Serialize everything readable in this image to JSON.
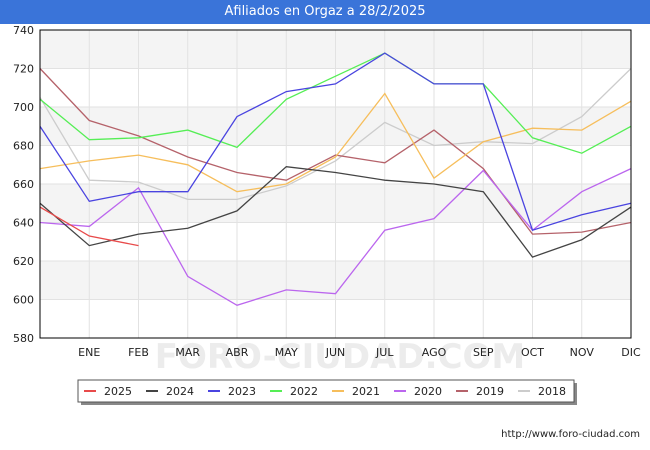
{
  "header": {
    "title": "Afiliados en Orgaz a 28/2/2025"
  },
  "footer": {
    "url": "http://www.foro-ciudad.com"
  },
  "watermark": "FORO-CIUDAD.COM",
  "chart_data": {
    "type": "line",
    "categories": [
      "",
      "ENE",
      "FEB",
      "MAR",
      "ABR",
      "MAY",
      "JUN",
      "JUL",
      "AGO",
      "SEP",
      "OCT",
      "NOV",
      "DIC"
    ],
    "ylim": [
      580,
      740
    ],
    "yticks": [
      580,
      600,
      620,
      640,
      660,
      680,
      700,
      720,
      740
    ],
    "grid": true,
    "legend_position": "bottom",
    "series": [
      {
        "name": "2018",
        "color": "#cccccc",
        "values": [
          705,
          662,
          661,
          652,
          652,
          659,
          672,
          692,
          680,
          682,
          681,
          695,
          720
        ]
      },
      {
        "name": "2019",
        "color": "#b5626a",
        "values": [
          720,
          693,
          685,
          674,
          666,
          662,
          675,
          671,
          688,
          668,
          634,
          635,
          640
        ]
      },
      {
        "name": "2020",
        "color": "#bb66ee",
        "values": [
          640,
          638,
          658,
          612,
          597,
          605,
          603,
          636,
          642,
          667,
          636,
          656,
          668
        ]
      },
      {
        "name": "2021",
        "color": "#f6be5c",
        "values": [
          668,
          672,
          675,
          670,
          656,
          660,
          674,
          707,
          663,
          682,
          689,
          688,
          703
        ]
      },
      {
        "name": "2022",
        "color": "#55ee55",
        "values": [
          704,
          683,
          684,
          688,
          679,
          704,
          716,
          728,
          712,
          712,
          684,
          676,
          690
        ]
      },
      {
        "name": "2023",
        "color": "#4a44e0",
        "values": [
          690,
          651,
          656,
          656,
          695,
          708,
          712,
          728,
          712,
          712,
          636,
          644,
          650
        ]
      },
      {
        "name": "2024",
        "color": "#444444",
        "values": [
          650,
          628,
          634,
          637,
          646,
          669,
          666,
          662,
          660,
          656,
          622,
          631,
          648
        ]
      },
      {
        "name": "2025",
        "color": "#e84a4a",
        "values": [
          648,
          633,
          628,
          null,
          null,
          null,
          null,
          null,
          null,
          null,
          null,
          null,
          null
        ]
      }
    ],
    "legend_order": [
      "2025",
      "2024",
      "2023",
      "2022",
      "2021",
      "2020",
      "2019",
      "2018"
    ]
  }
}
